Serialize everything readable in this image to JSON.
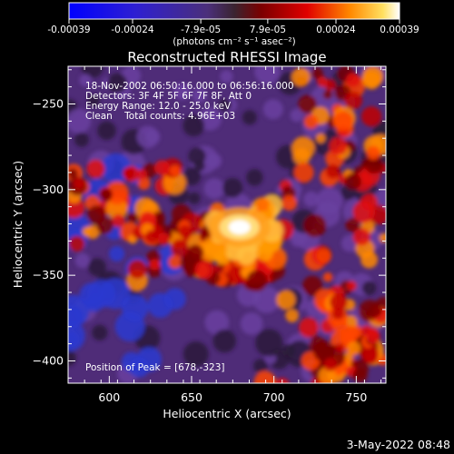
{
  "colorbar": {
    "ticks": [
      "-0.00039",
      "-0.00024",
      "-7.9e-05",
      "7.9e-05",
      "0.00024",
      "0.00039"
    ],
    "tick_values": [
      -0.00039,
      -0.00024,
      -7.9e-05,
      7.9e-05,
      0.00024,
      0.00039
    ],
    "range": [
      -0.00039,
      0.00039
    ],
    "unit_label": "(photons cm⁻² s⁻¹ asec⁻²)"
  },
  "chart_data": {
    "type": "heatmap",
    "title": "Reconstructed RHESSI Image",
    "xlabel": "Heliocentric X (arcsec)",
    "ylabel": "Heliocentric Y (arcsec)",
    "xlim": [
      575,
      768
    ],
    "ylim": [
      -413,
      -228
    ],
    "xticks": [
      600,
      650,
      700,
      750
    ],
    "yticks": [
      -250,
      -300,
      -350,
      -400
    ],
    "peak": {
      "x": 678,
      "y": -323,
      "label": "Position of Peak = [678,-323]"
    },
    "info_lines": [
      "18-Nov-2002 06:50:16.000 to 06:56:16.000",
      "Detectors: 3F 4F 5F 6F 7F 8F, Att 0",
      "Energy Range: 12.0 - 25.0 keV",
      "Clean    Total counts: 4.96E+03"
    ],
    "colors": {
      "low": "#0000ff",
      "mid": "#5e2f86",
      "high": "#ffffff",
      "accent": "#ff8800"
    }
  },
  "footer": {
    "timestamp": "3-May-2022 08:48"
  }
}
